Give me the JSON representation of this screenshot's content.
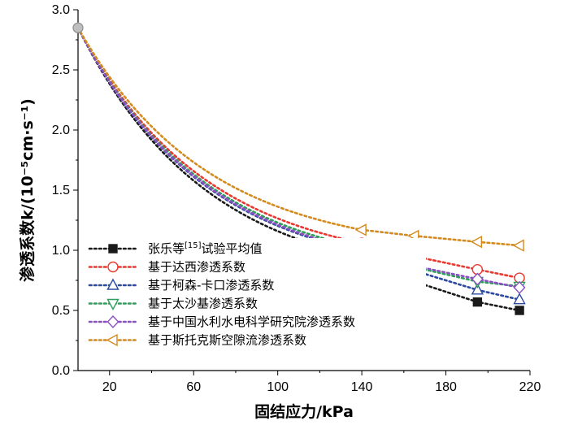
{
  "chart_data": {
    "type": "line",
    "xlabel": "固结应力/kPa",
    "ylabel": "渗透系数k/(10⁻⁵cm·s⁻¹)",
    "xlim": [
      5,
      220
    ],
    "ylim": [
      0,
      3.0
    ],
    "xticks": [
      20,
      60,
      100,
      140,
      180,
      220
    ],
    "yticks": [
      0.0,
      0.5,
      1.0,
      1.5,
      2.0,
      2.5,
      3.0
    ],
    "ytick_labels": [
      "0.0",
      "0.5",
      "1.0",
      "1.5",
      "2.0",
      "2.5",
      "3.0"
    ],
    "legend_position": "bottom-left",
    "grid": false,
    "series": [
      {
        "name": "张乐等[15]试验平均值",
        "color": "#1a1a1a",
        "marker": "square-filled",
        "x": [
          5,
          140,
          165,
          195,
          215
        ],
        "y": [
          2.85,
          0.94,
          0.74,
          0.57,
          0.5
        ]
      },
      {
        "name": "基于达西渗透系数",
        "color": "#e8382f",
        "marker": "circle-open",
        "x": [
          5,
          140,
          165,
          195,
          215
        ],
        "y": [
          2.85,
          1.06,
          0.95,
          0.84,
          0.77
        ]
      },
      {
        "name": "基于柯森-卡口渗透系数",
        "color": "#2b4aa0",
        "marker": "triangle-up-open",
        "x": [
          5,
          140,
          165,
          195,
          215
        ],
        "y": [
          2.85,
          0.99,
          0.83,
          0.67,
          0.59
        ]
      },
      {
        "name": "基于太沙基渗透系数",
        "color": "#2e9e5b",
        "marker": "triangle-down-open",
        "x": [
          5,
          140,
          165,
          195,
          215
        ],
        "y": [
          2.85,
          1.02,
          0.86,
          0.74,
          0.7
        ]
      },
      {
        "name": "基于中国水利水电科学研究院渗透系数",
        "color": "#8a4fc0",
        "marker": "diamond-open",
        "x": [
          5,
          140,
          165,
          195,
          215
        ],
        "y": [
          2.85,
          1.0,
          0.87,
          0.76,
          0.69
        ]
      },
      {
        "name": "基于斯托克斯空隙流渗透系数",
        "color": "#d48a1e",
        "marker": "triangle-left-open",
        "x": [
          5,
          140,
          165,
          195,
          215
        ],
        "y": [
          2.85,
          1.17,
          1.12,
          1.07,
          1.04
        ]
      }
    ]
  }
}
